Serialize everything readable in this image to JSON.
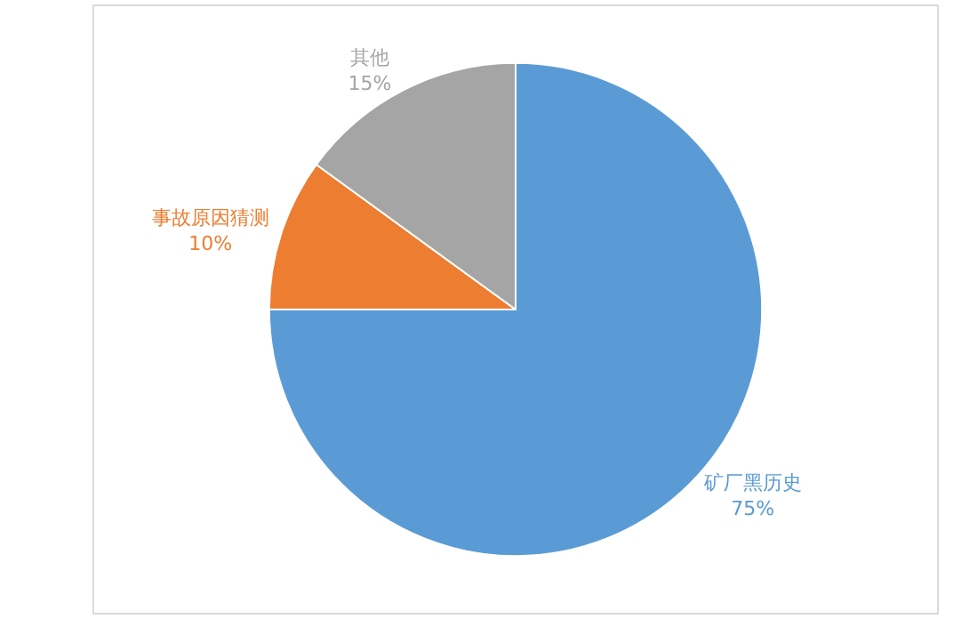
{
  "chart_data": {
    "type": "pie",
    "categories": [
      "矿厂黑历史",
      "事故原因猜测",
      "其他"
    ],
    "values": [
      75,
      10,
      15
    ],
    "value_labels": [
      "75%",
      "10%",
      "15%"
    ],
    "colors": [
      "#5b9bd5",
      "#ed7d31",
      "#a5a5a5"
    ],
    "legend": false
  }
}
